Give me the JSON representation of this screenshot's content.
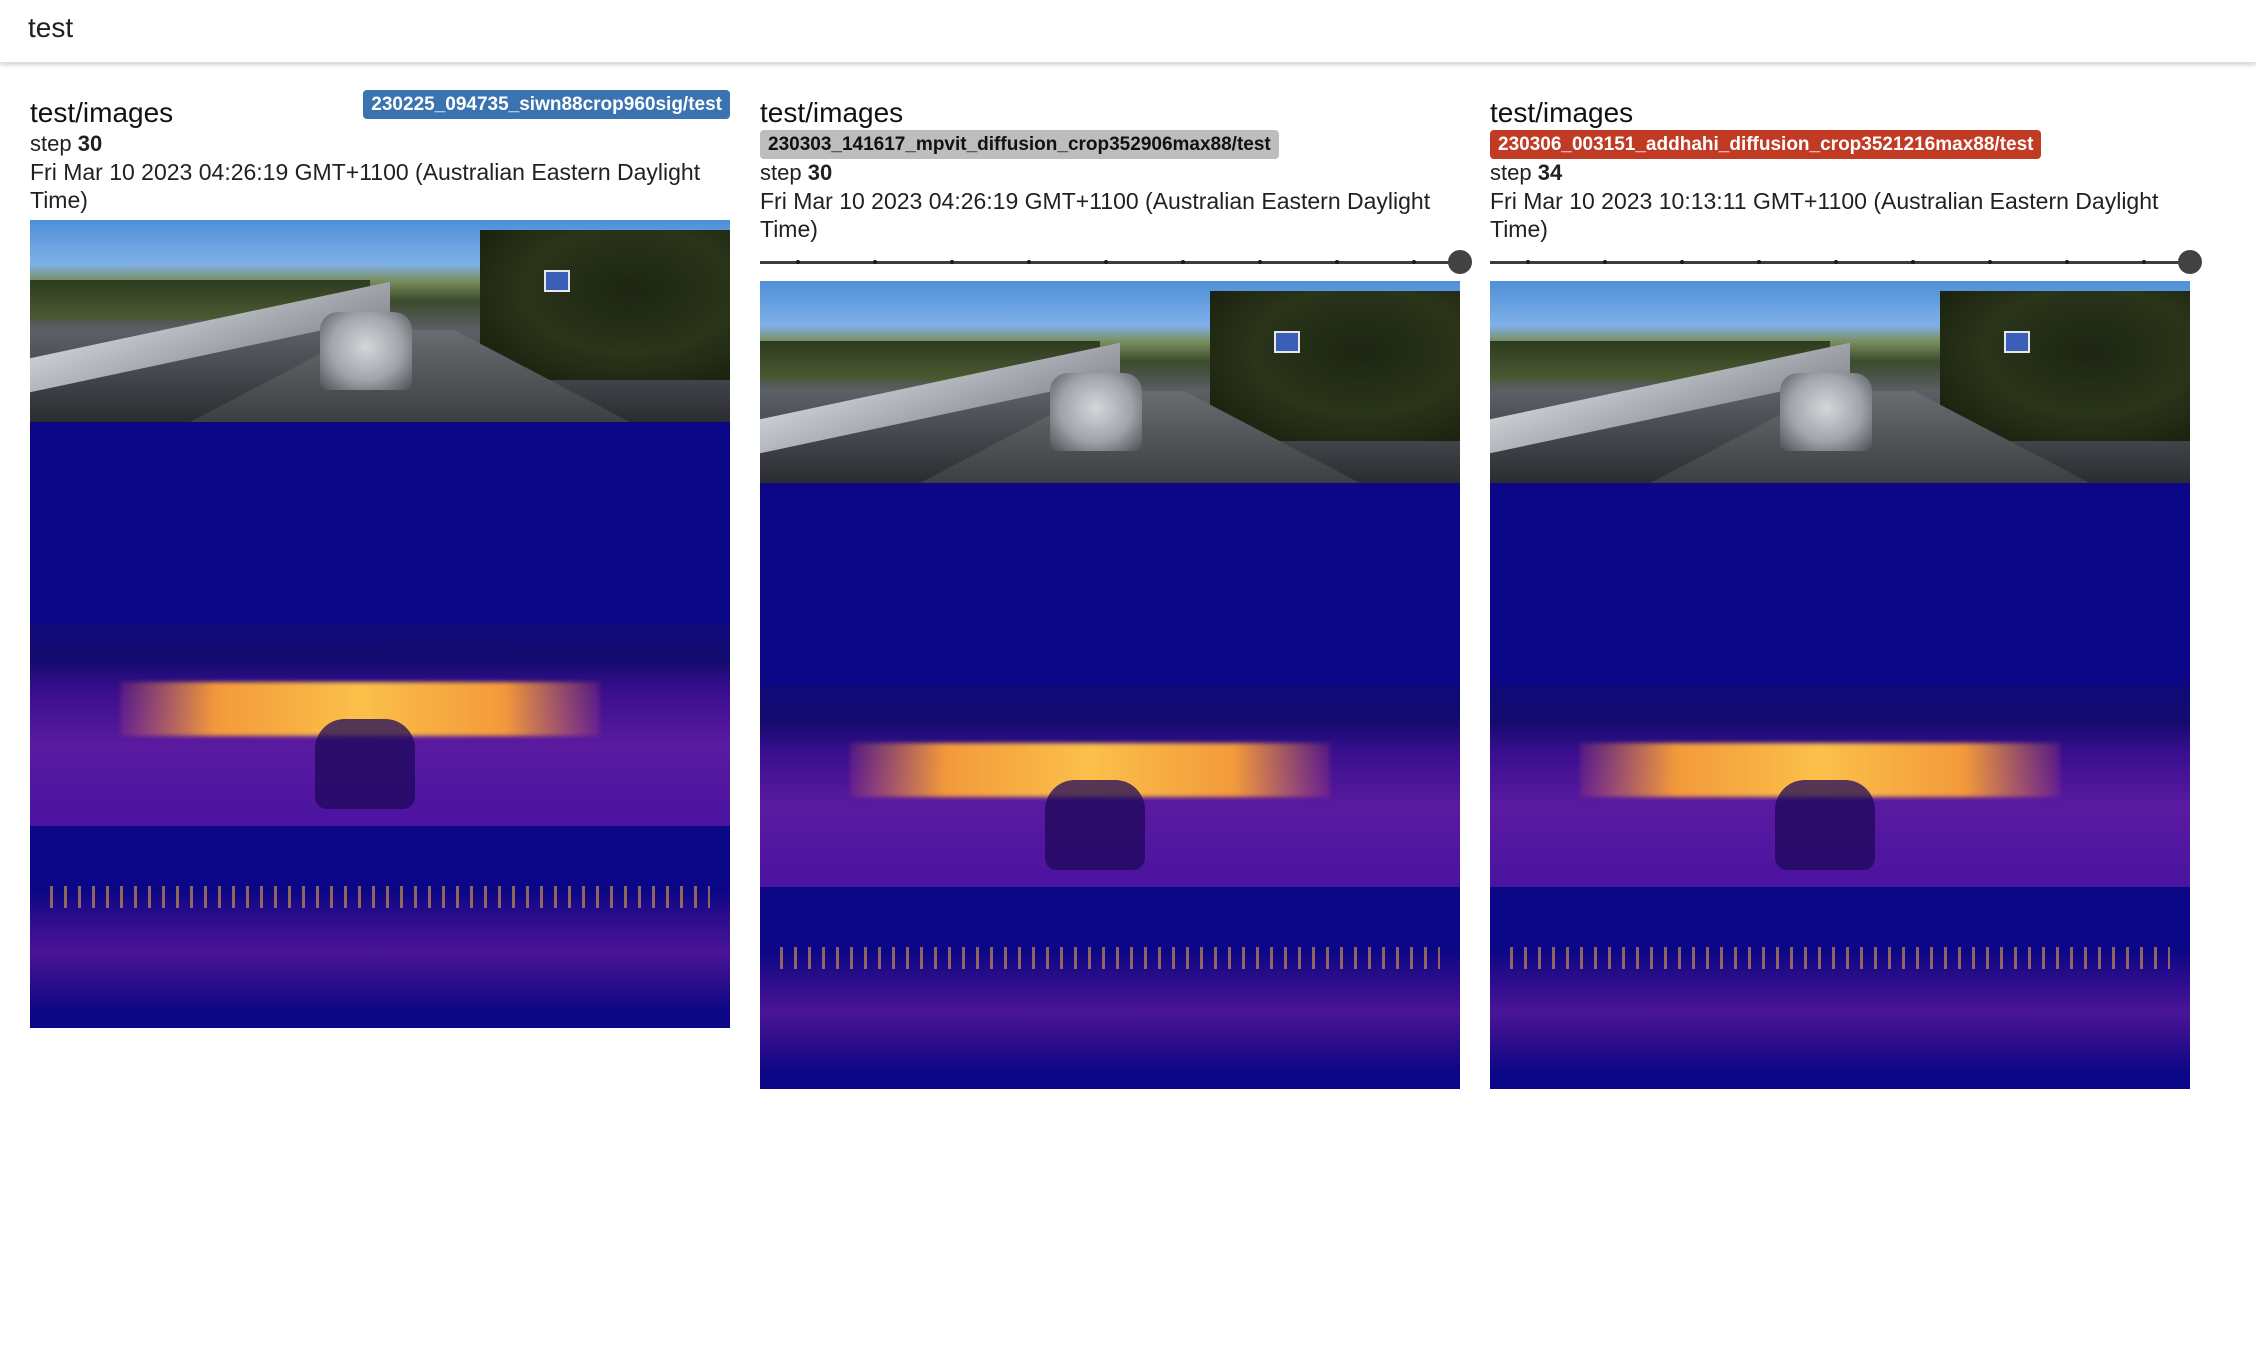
{
  "header": {
    "title": "test"
  },
  "colors": {
    "badge_blue": "#3b73b1",
    "badge_gray": "#bdbdbd",
    "badge_red": "#c13a24",
    "navy": "#0c0786"
  },
  "cards": [
    {
      "title": "test/images",
      "run": "230225_094735_siwn88crop960sig/test",
      "step_label": "step",
      "step": "30",
      "timestamp": "Fri Mar 10 2023 04:26:19 GMT+1100 (Australian Eastern Daylight Time)"
    },
    {
      "title": "test/images",
      "run": "230303_141617_mpvit_diffusion_crop352906max88/test",
      "step_label": "step",
      "step": "30",
      "timestamp": "Fri Mar 10 2023 04:26:19 GMT+1100 (Australian Eastern Daylight Time)"
    },
    {
      "title": "test/images",
      "run": "230306_003151_addhahi_diffusion_crop3521216max88/test",
      "step_label": "step",
      "step": "34",
      "timestamp": "Fri Mar 10 2023 10:13:11 GMT+1100 (Australian Eastern Daylight Time)"
    }
  ]
}
